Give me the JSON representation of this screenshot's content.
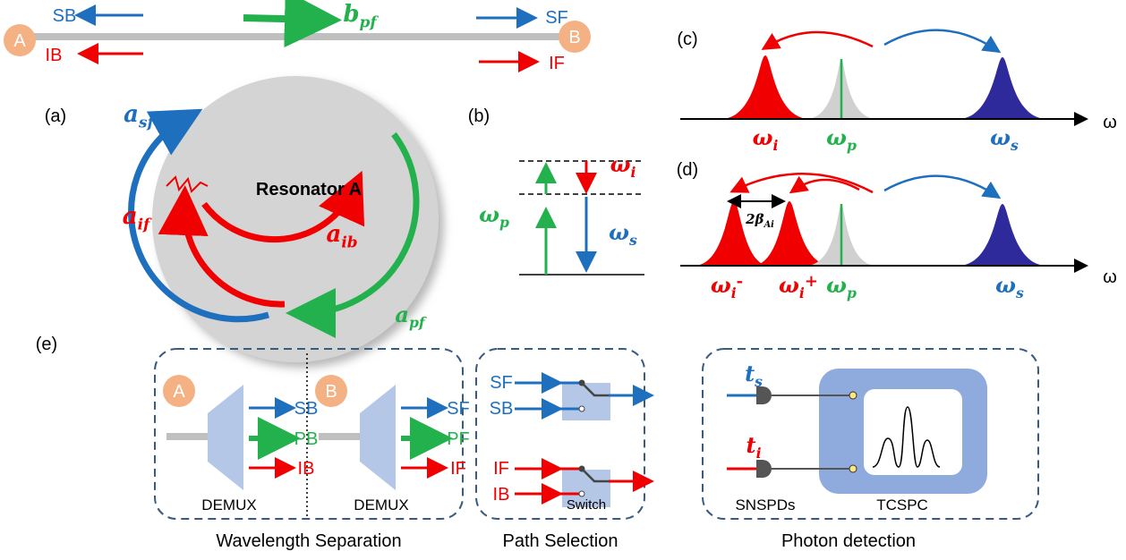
{
  "waveguide": {
    "port_a": "A",
    "port_b": "B",
    "sb": "SB",
    "ib": "IB",
    "sf": "SF",
    "if": "IF",
    "pump": {
      "main": "b",
      "sub": "pf"
    }
  },
  "panel_a": {
    "label": "(a)",
    "resonator": "Resonator A",
    "a_sf": {
      "main": "a",
      "sub": "sf"
    },
    "a_if": {
      "main": "a",
      "sub": "if"
    },
    "a_ib": {
      "main": "a",
      "sub": "ib"
    },
    "a_pf": {
      "main": "a",
      "sub": "pf"
    }
  },
  "panel_b": {
    "label": "(b)",
    "omega_p": {
      "main": "ω",
      "sub": "p"
    },
    "omega_i": {
      "main": "ω",
      "sub": "i"
    },
    "omega_s": {
      "main": "ω",
      "sub": "s"
    }
  },
  "panel_c": {
    "label": "(c)",
    "axis": "ω",
    "omega_i": {
      "main": "ω",
      "sub": "i"
    },
    "omega_p": {
      "main": "ω",
      "sub": "p"
    },
    "omega_s": {
      "main": "ω",
      "sub": "s"
    }
  },
  "panel_d": {
    "label": "(d)",
    "axis": "ω",
    "splitting": {
      "main": "2β",
      "sub": "Ai"
    },
    "omega_i_minus": {
      "main": "ω",
      "sub": "i",
      "sup": "-"
    },
    "omega_i_plus": {
      "main": "ω",
      "sub": "i",
      "sup": "+"
    },
    "omega_p": {
      "main": "ω",
      "sub": "p"
    },
    "omega_s": {
      "main": "ω",
      "sub": "s"
    }
  },
  "panel_e": {
    "label": "(e)",
    "wavelength_separation": {
      "caption": "Wavelength Separation",
      "demux_a": {
        "port": "A",
        "outputs": [
          "SB",
          "PB",
          "IB"
        ],
        "label": "DEMUX"
      },
      "demux_b": {
        "port": "B",
        "outputs": [
          "SF",
          "PF",
          "IF"
        ],
        "label": "DEMUX"
      }
    },
    "path_selection": {
      "caption": "Path Selection",
      "inputs_top": [
        "SF",
        "SB"
      ],
      "inputs_bottom": [
        "IF",
        "IB"
      ],
      "label": "Switch"
    },
    "photon_detection": {
      "caption": "Photon detection",
      "t_s": {
        "main": "t",
        "sub": "s"
      },
      "t_i": {
        "main": "t",
        "sub": "i"
      },
      "detectors": "SNSPDs",
      "counter": "TCSPC"
    }
  }
}
